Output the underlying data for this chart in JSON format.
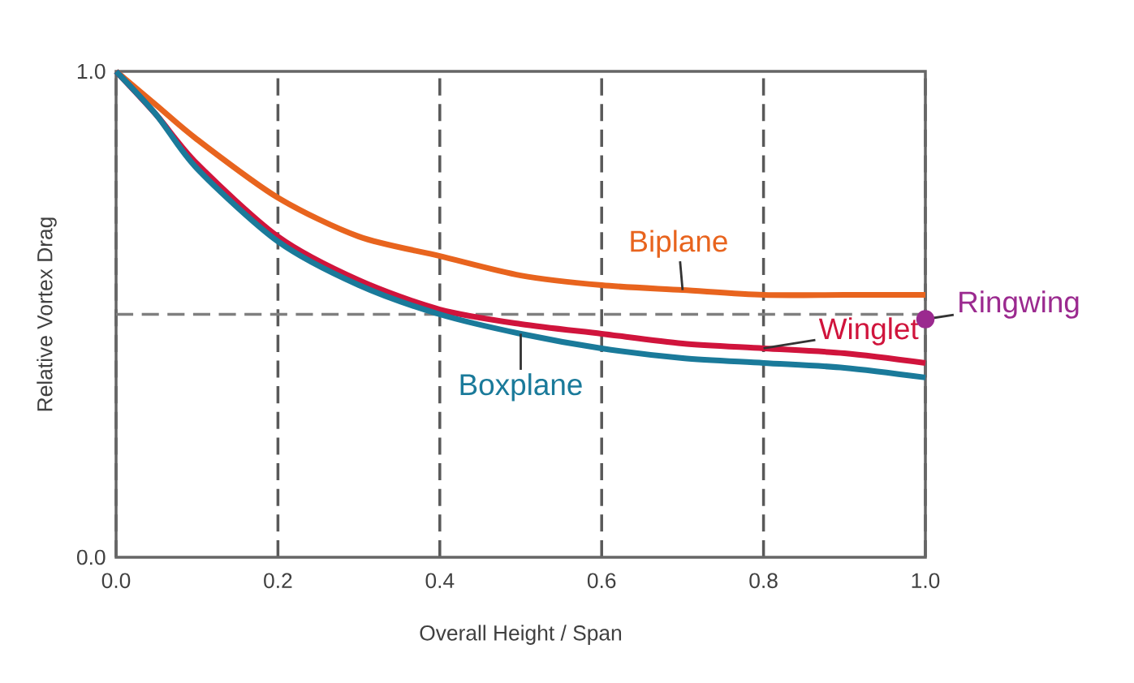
{
  "chart_data": {
    "type": "line",
    "xlabel": "Overall Height / Span",
    "ylabel": "Relative Vortex Drag",
    "xlim": [
      0,
      1
    ],
    "ylim": [
      0,
      1
    ],
    "xticks": [
      {
        "value": 0,
        "label": "0.0"
      },
      0.2,
      0.4,
      0.6,
      0.8,
      {
        "value": 1,
        "label": "1.0"
      }
    ],
    "yticks": [
      {
        "value": 0,
        "label": "0.0"
      },
      {
        "value": 1,
        "label": "1.0"
      }
    ],
    "grid": "x",
    "line_style": "solid",
    "marker": "none",
    "ref_lines": [
      {
        "axis": "y",
        "value": 0.5,
        "color": "#7f7f7f",
        "line_style": "dashed"
      }
    ],
    "series": [
      {
        "name": "Biplane",
        "color": "#e8641e",
        "x": [
          0,
          0.05,
          0.1,
          0.2,
          0.3,
          0.4,
          0.5,
          0.6,
          0.7,
          0.8,
          0.9,
          1.0
        ],
        "values": [
          1.0,
          0.93,
          0.86,
          0.74,
          0.66,
          0.62,
          0.58,
          0.56,
          0.55,
          0.54,
          0.54,
          0.54
        ]
      },
      {
        "name": "Winglet",
        "color": "#d0143c",
        "x": [
          0,
          0.05,
          0.1,
          0.2,
          0.3,
          0.4,
          0.5,
          0.6,
          0.7,
          0.8,
          0.9,
          1.0
        ],
        "values": [
          1.0,
          0.91,
          0.81,
          0.66,
          0.57,
          0.51,
          0.48,
          0.46,
          0.44,
          0.43,
          0.42,
          0.4
        ]
      },
      {
        "name": "Boxplane",
        "color": "#1a7a9a",
        "x": [
          0,
          0.05,
          0.1,
          0.2,
          0.3,
          0.4,
          0.5,
          0.6,
          0.7,
          0.8,
          0.9,
          1.0
        ],
        "values": [
          1.0,
          0.91,
          0.8,
          0.65,
          0.56,
          0.5,
          0.46,
          0.43,
          0.41,
          0.4,
          0.39,
          0.37
        ]
      },
      {
        "name": "Ringwing",
        "type": "scatter",
        "marker": "circle",
        "color": "#9b2a8f",
        "x": [
          1.0
        ],
        "values": [
          0.49
        ]
      }
    ]
  }
}
